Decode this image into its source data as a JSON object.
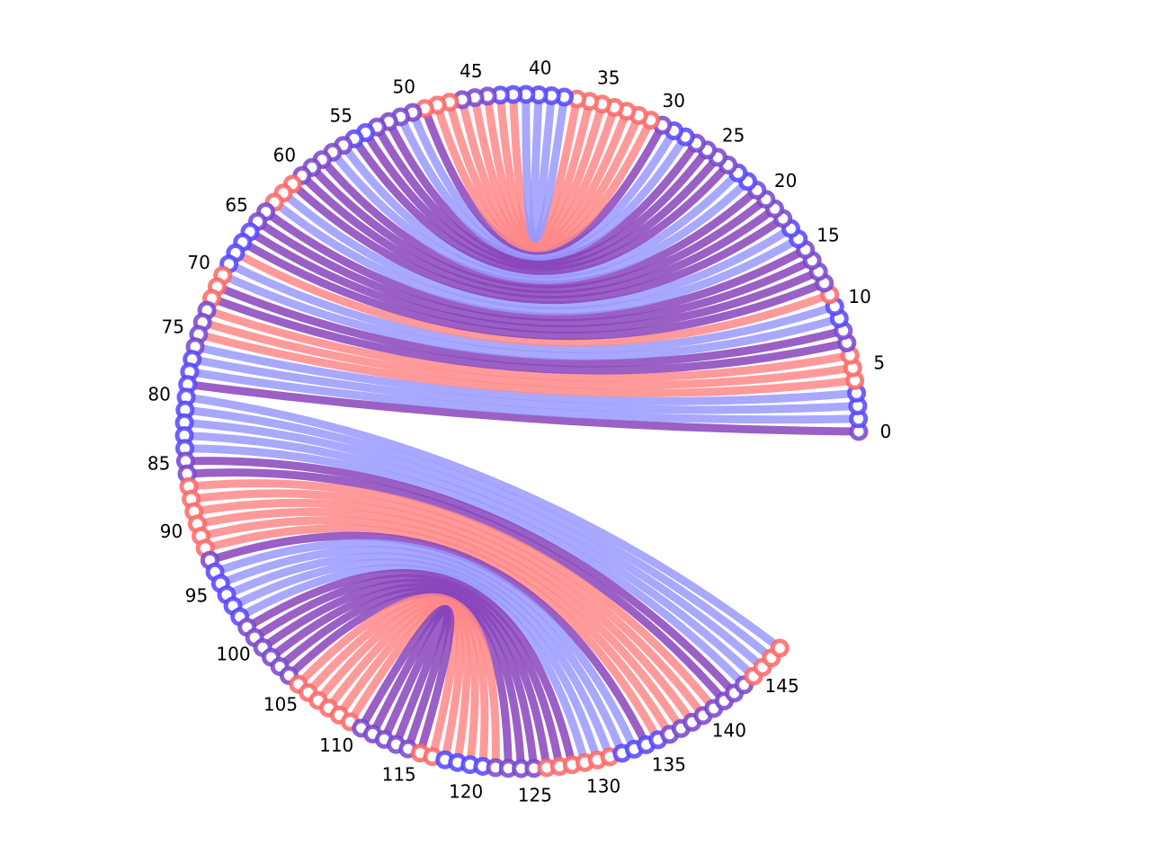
{
  "diagram": {
    "type": "arc-chord-diagram",
    "node_count": 148,
    "tick_labels": [
      "0",
      "5",
      "10",
      "15",
      "20",
      "25",
      "30",
      "35",
      "40",
      "45",
      "50",
      "55",
      "60",
      "65",
      "70",
      "75",
      "80",
      "85",
      "90",
      "95",
      "100",
      "105",
      "110",
      "115",
      "120",
      "125",
      "130",
      "135",
      "140",
      "145"
    ],
    "colors": {
      "red": "#ff8888",
      "blue": "#9999ff",
      "purple": "#8844bb",
      "node_red": "#ff6666",
      "node_blue": "#5544ff",
      "node_purple": "#7744cc"
    },
    "color_sequence": [
      "purple",
      "blue",
      "blue",
      "blue",
      "red",
      "red",
      "red",
      "purple",
      "purple",
      "blue",
      "blue",
      "red",
      "purple",
      "purple",
      "purple",
      "purple",
      "blue",
      "blue",
      "purple",
      "purple",
      "purple",
      "purple",
      "blue",
      "blue",
      "purple",
      "purple",
      "purple",
      "purple",
      "blue",
      "blue",
      "purple",
      "red",
      "red",
      "red",
      "red",
      "red",
      "red",
      "red",
      "blue",
      "blue",
      "blue",
      "blue",
      "blue",
      "blue",
      "purple",
      "purple",
      "purple",
      "red",
      "red",
      "red",
      "purple",
      "purple",
      "purple",
      "purple",
      "blue",
      "blue",
      "purple",
      "purple",
      "purple",
      "purple",
      "purple",
      "red",
      "red",
      "red",
      "purple",
      "purple",
      "blue",
      "blue",
      "blue",
      "blue",
      "red",
      "red",
      "red",
      "purple",
      "purple",
      "purple",
      "purple",
      "blue",
      "blue",
      "blue",
      "blue",
      "blue",
      "blue",
      "blue",
      "blue",
      "purple",
      "purple",
      "red",
      "red",
      "red",
      "red",
      "red",
      "red",
      "purple",
      "blue",
      "blue",
      "blue",
      "blue",
      "blue",
      "purple",
      "purple",
      "purple",
      "purple",
      "purple",
      "purple",
      "red",
      "red",
      "red",
      "red",
      "red",
      "red",
      "purple",
      "purple",
      "purple",
      "purple",
      "purple",
      "red",
      "red",
      "blue",
      "blue",
      "blue",
      "blue",
      "purple",
      "purple",
      "purple",
      "purple",
      "red",
      "red",
      "red",
      "red",
      "red",
      "red",
      "blue",
      "blue",
      "blue",
      "blue",
      "purple",
      "purple",
      "purple",
      "purple",
      "purple",
      "purple",
      "purple",
      "purple",
      "red",
      "red",
      "red",
      "red"
    ],
    "chords": [
      {
        "from": 0,
        "to": 79
      },
      {
        "from": 80,
        "to": 147
      },
      {
        "from": 93,
        "to": 140
      },
      {
        "from": 115,
        "to": 132
      },
      {
        "from": 30,
        "to": 45
      },
      {
        "from": 16,
        "to": 60
      },
      {
        "from": 1,
        "to": 78
      }
    ]
  }
}
